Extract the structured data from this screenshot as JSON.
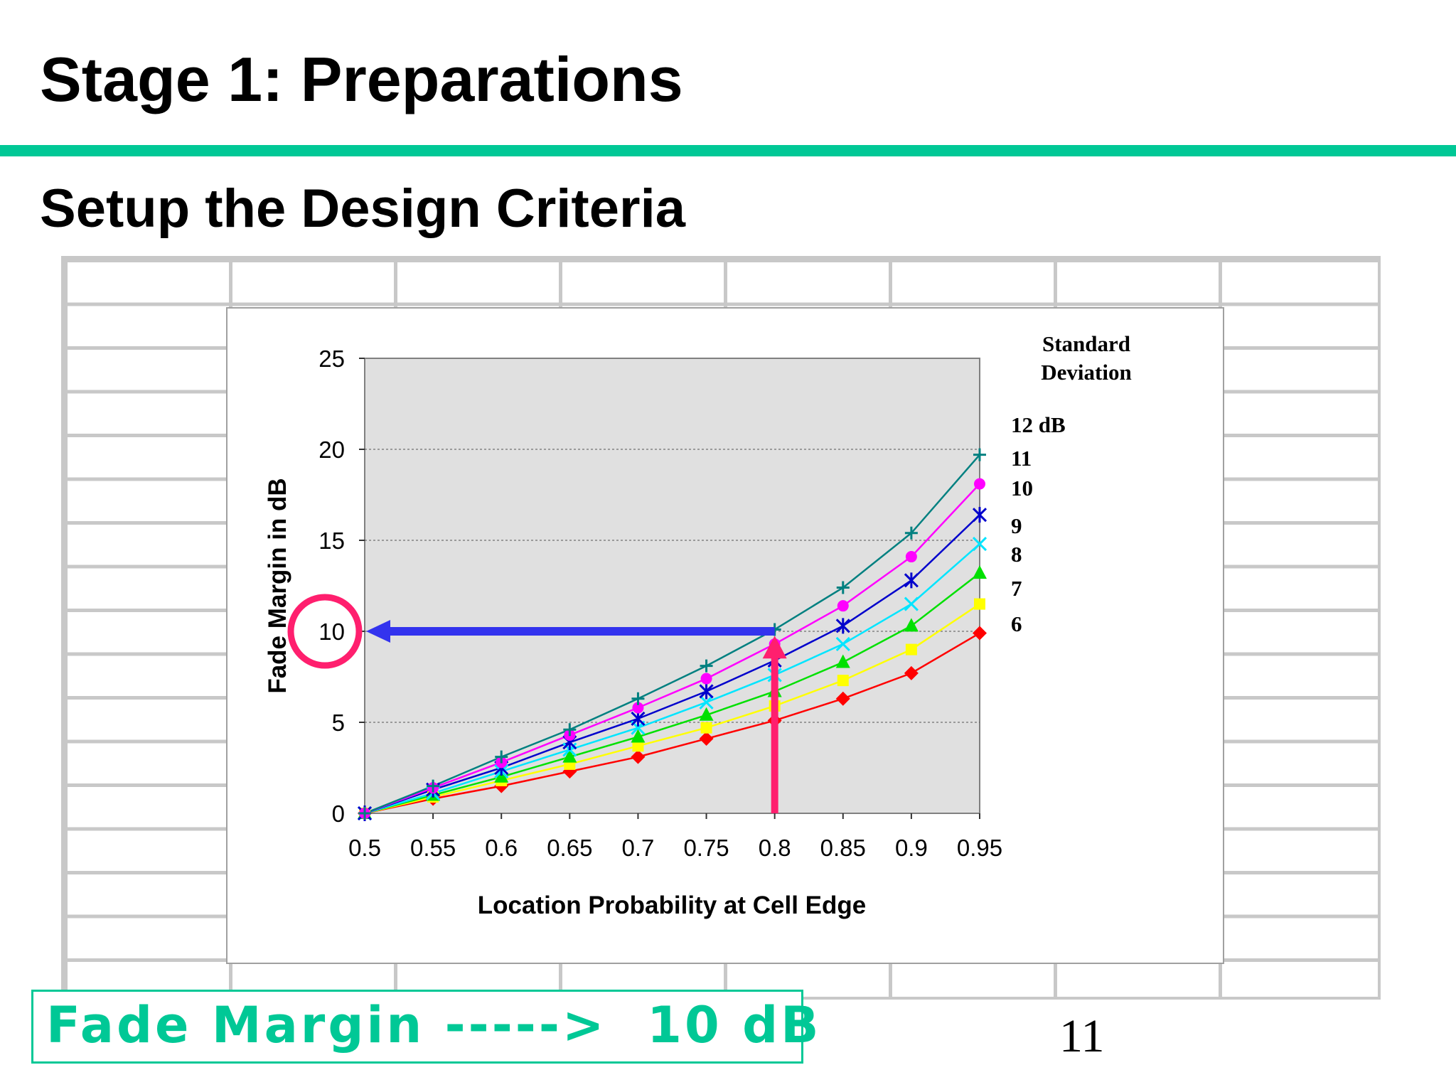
{
  "slide": {
    "title": "Stage 1: Preparations",
    "subtitle": "Setup the Design Criteria",
    "callout": "Fade Margin ----->  10 dB",
    "page_number": "11",
    "accent_color": "#00c896"
  },
  "chart_data": {
    "type": "line",
    "xlabel": "Location Probability at Cell Edge",
    "ylabel": "Fade Margin in dB",
    "x": [
      0.5,
      0.55,
      0.6,
      0.65,
      0.7,
      0.75,
      0.8,
      0.85,
      0.9,
      0.95
    ],
    "x_tick_labels": [
      "0.5",
      "0.55",
      "0.6",
      "0.65",
      "0.7",
      "0.75",
      "0.8",
      "0.85",
      "0.9",
      "0.95"
    ],
    "ylim": [
      0,
      25
    ],
    "y_ticks": [
      0,
      5,
      10,
      15,
      20,
      25
    ],
    "grid": "horizontal dotted",
    "plot_background": "#e0e0e0",
    "legend_title": "Standard\nDeviation",
    "series": [
      {
        "name": "12 dB",
        "color": "#008080",
        "marker": "plus",
        "values": [
          0,
          1.5,
          3.1,
          4.6,
          6.3,
          8.1,
          10.1,
          12.4,
          15.4,
          19.7
        ]
      },
      {
        "name": "11",
        "color": "#ff00ff",
        "marker": "circle",
        "values": [
          0,
          1.4,
          2.8,
          4.3,
          5.8,
          7.4,
          9.3,
          11.4,
          14.1,
          18.1
        ]
      },
      {
        "name": "10",
        "color": "#0000cc",
        "marker": "star",
        "values": [
          0,
          1.3,
          2.5,
          3.9,
          5.2,
          6.7,
          8.4,
          10.3,
          12.8,
          16.4
        ]
      },
      {
        "name": "9",
        "color": "#00e5ff",
        "marker": "x",
        "values": [
          0,
          1.1,
          2.3,
          3.5,
          4.7,
          6.1,
          7.6,
          9.3,
          11.5,
          14.8
        ]
      },
      {
        "name": "8",
        "color": "#00e000",
        "marker": "triangle",
        "values": [
          0,
          1.0,
          2.0,
          3.1,
          4.2,
          5.4,
          6.7,
          8.3,
          10.3,
          13.2
        ]
      },
      {
        "name": "7",
        "color": "#ffff00",
        "marker": "square",
        "values": [
          0,
          0.9,
          1.8,
          2.7,
          3.7,
          4.7,
          5.9,
          7.3,
          9.0,
          11.5
        ]
      },
      {
        "name": "6",
        "color": "#ff0000",
        "marker": "diamond",
        "values": [
          0,
          0.8,
          1.5,
          2.3,
          3.1,
          4.1,
          5.1,
          6.3,
          7.7,
          9.9
        ]
      }
    ],
    "annotations": {
      "horizontal_arrow": {
        "color": "#3333ee",
        "from_x": 0.8,
        "to_x": 0.5,
        "y": 10
      },
      "vertical_arrow": {
        "color": "#ff1f6e",
        "x": 0.8,
        "from_y": 0,
        "to_y": 9.6
      },
      "highlight_circle": {
        "color": "#ff1f6e",
        "y": 10
      }
    }
  }
}
